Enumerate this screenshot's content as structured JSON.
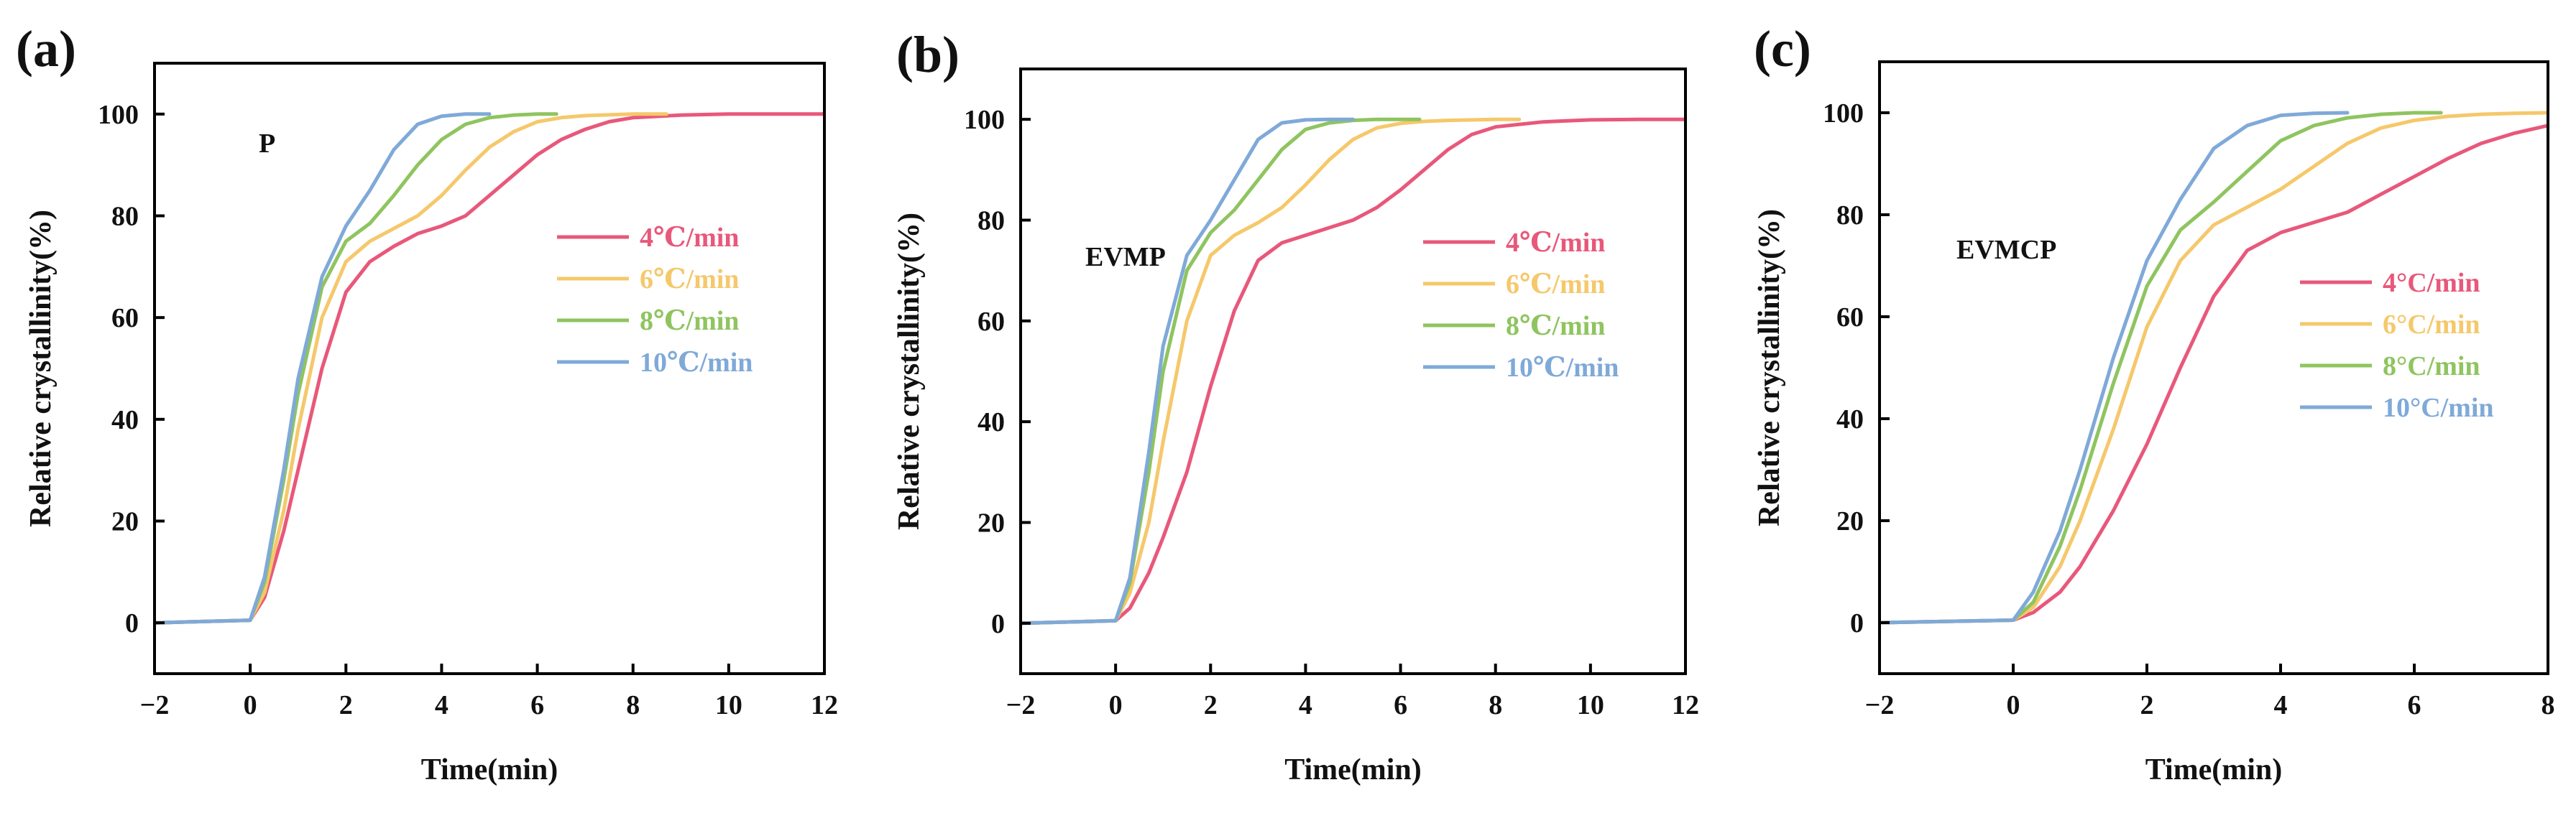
{
  "chart_data": [
    {
      "panel_label": "(a)",
      "type": "line",
      "title": "",
      "sample_label": "P",
      "xlabel": "Time(min)",
      "ylabel": "Relative crystallinity(%)",
      "xlim": [
        -2,
        12
      ],
      "ylim": [
        -10,
        110
      ],
      "xticks": [
        -2,
        0,
        2,
        4,
        6,
        8,
        10,
        12
      ],
      "xtick_labels": [
        "−2",
        "0",
        "2",
        "4",
        "6",
        "8",
        "10",
        "12"
      ],
      "yticks": [
        0,
        20,
        40,
        60,
        80,
        100
      ],
      "ytick_labels": [
        "0",
        "20",
        "40",
        "60",
        "80",
        "100"
      ],
      "legend_position": "center-right",
      "series": [
        {
          "name": "4℃/min",
          "color": "#e8587a",
          "x": [
            -2,
            0,
            0.3,
            0.7,
            1,
            1.5,
            2,
            2.5,
            3,
            3.5,
            4,
            4.5,
            5,
            5.5,
            6,
            6.5,
            7,
            7.5,
            8,
            9,
            10,
            11,
            12
          ],
          "y": [
            0,
            0.5,
            5,
            18,
            30,
            50,
            65,
            71,
            74,
            76.5,
            78,
            80,
            84,
            88,
            92,
            95,
            97,
            98.5,
            99.3,
            99.8,
            100,
            100,
            100
          ]
        },
        {
          "name": "6℃/min",
          "color": "#f5c86b",
          "x": [
            -2,
            0,
            0.3,
            0.7,
            1,
            1.5,
            2,
            2.5,
            3,
            3.5,
            4,
            4.5,
            5,
            5.5,
            6,
            6.5,
            7,
            8,
            8.7
          ],
          "y": [
            0,
            0.5,
            6,
            22,
            38,
            60,
            71,
            75,
            77.5,
            80,
            84,
            89,
            93.5,
            96.5,
            98.5,
            99.3,
            99.7,
            100,
            100
          ]
        },
        {
          "name": "8℃/min",
          "color": "#8fc45f",
          "x": [
            -2,
            0,
            0.3,
            0.7,
            1,
            1.5,
            2,
            2.5,
            3,
            3.5,
            4,
            4.5,
            5,
            5.5,
            6,
            6.4
          ],
          "y": [
            0,
            0.5,
            8,
            28,
            45,
            66,
            75,
            78.5,
            84,
            90,
            95,
            98,
            99.3,
            99.8,
            100,
            100
          ]
        },
        {
          "name": "10℃/min",
          "color": "#7fa9d8",
          "x": [
            -2,
            0,
            0.3,
            0.7,
            1,
            1.5,
            2,
            2.5,
            3,
            3.5,
            4,
            4.5,
            5
          ],
          "y": [
            0,
            0.5,
            9,
            30,
            48,
            68,
            78,
            85,
            93,
            98,
            99.6,
            100,
            100
          ]
        }
      ]
    },
    {
      "panel_label": "(b)",
      "type": "line",
      "title": "",
      "sample_label": "EVMP",
      "xlabel": "Time(min)",
      "ylabel": "Relative crystallinity(%)",
      "xlim": [
        -2,
        12
      ],
      "ylim": [
        -10,
        110
      ],
      "xticks": [
        -2,
        0,
        2,
        4,
        6,
        8,
        10,
        12
      ],
      "xtick_labels": [
        "−2",
        "0",
        "2",
        "4",
        "6",
        "8",
        "10",
        "12"
      ],
      "yticks": [
        0,
        20,
        40,
        60,
        80,
        100
      ],
      "ytick_labels": [
        "0",
        "20",
        "40",
        "60",
        "80",
        "100"
      ],
      "legend_position": "center-right",
      "series": [
        {
          "name": "4℃/min",
          "color": "#e8587a",
          "x": [
            -2,
            0,
            0.3,
            0.7,
            1,
            1.5,
            2,
            2.5,
            3,
            3.5,
            4,
            4.5,
            5,
            5.5,
            6,
            6.5,
            7,
            7.5,
            8,
            9,
            10,
            11,
            12
          ],
          "y": [
            0,
            0.5,
            3,
            10,
            17,
            30,
            47,
            62,
            72,
            75.5,
            77,
            78.5,
            80,
            82.5,
            86,
            90,
            94,
            97,
            98.5,
            99.5,
            99.9,
            100,
            100
          ]
        },
        {
          "name": "6℃/min",
          "color": "#f5c86b",
          "x": [
            -2,
            0,
            0.3,
            0.7,
            1,
            1.5,
            2,
            2.5,
            3,
            3.5,
            4,
            4.5,
            5,
            5.5,
            6,
            6.5,
            7,
            8,
            8.5
          ],
          "y": [
            0,
            0.5,
            6,
            20,
            36,
            60,
            73,
            77,
            79.5,
            82.5,
            87,
            92,
            96,
            98.3,
            99.2,
            99.6,
            99.8,
            100,
            100
          ]
        },
        {
          "name": "8℃/min",
          "color": "#8fc45f",
          "x": [
            -2,
            0,
            0.3,
            0.7,
            1,
            1.5,
            2,
            2.5,
            3,
            3.5,
            4,
            4.5,
            5,
            5.5,
            6,
            6.4
          ],
          "y": [
            0,
            0.5,
            8,
            30,
            50,
            70,
            77.5,
            82,
            88,
            94,
            98,
            99.3,
            99.8,
            100,
            100,
            100
          ]
        },
        {
          "name": "10℃/min",
          "color": "#7fa9d8",
          "x": [
            -2,
            0,
            0.3,
            0.7,
            1,
            1.5,
            2,
            2.5,
            3,
            3.5,
            4,
            4.5,
            5
          ],
          "y": [
            0,
            0.5,
            9,
            34,
            55,
            73,
            80,
            88,
            96,
            99.3,
            99.9,
            100,
            100
          ]
        }
      ]
    },
    {
      "panel_label": "(c)",
      "type": "line",
      "title": "",
      "sample_label": "EVMCP",
      "xlabel": "Time(min)",
      "ylabel": "Relative crystallinity(%)",
      "xlim": [
        -2,
        8
      ],
      "ylim": [
        -10,
        110
      ],
      "xticks": [
        -2,
        0,
        2,
        4,
        6,
        8
      ],
      "xtick_labels": [
        "−2",
        "0",
        "2",
        "4",
        "6",
        "8"
      ],
      "yticks": [
        0,
        20,
        40,
        60,
        80,
        100
      ],
      "ytick_labels": [
        "0",
        "20",
        "40",
        "60",
        "80",
        "100"
      ],
      "legend_position": "center-right",
      "series": [
        {
          "name": "4°C/min",
          "color": "#e8587a",
          "x": [
            -2,
            0,
            0.3,
            0.7,
            1,
            1.5,
            2,
            2.5,
            3,
            3.5,
            4,
            4.5,
            5,
            5.5,
            6,
            6.5,
            7,
            7.5,
            8
          ],
          "y": [
            0,
            0.5,
            2,
            6,
            11,
            22,
            35,
            50,
            64,
            73,
            76.5,
            78.5,
            80.5,
            84,
            87.5,
            91,
            94,
            96,
            97.5
          ]
        },
        {
          "name": "6°C/min",
          "color": "#f5c86b",
          "x": [
            -2,
            0,
            0.3,
            0.7,
            1,
            1.5,
            2,
            2.5,
            3,
            3.5,
            4,
            4.5,
            5,
            5.5,
            6,
            6.5,
            7,
            7.5,
            8
          ],
          "y": [
            0,
            0.5,
            3,
            11,
            20,
            38,
            58,
            71,
            78,
            81.5,
            85,
            89.5,
            94,
            97,
            98.5,
            99.3,
            99.7,
            99.9,
            100
          ]
        },
        {
          "name": "8°C/min",
          "color": "#8fc45f",
          "x": [
            -2,
            0,
            0.3,
            0.7,
            1,
            1.5,
            2,
            2.5,
            3,
            3.5,
            4,
            4.5,
            5,
            5.5,
            6,
            6.4
          ],
          "y": [
            0,
            0.5,
            4,
            15,
            26,
            47,
            66,
            77,
            82.5,
            88.5,
            94.5,
            97.5,
            99,
            99.7,
            100,
            100
          ]
        },
        {
          "name": "10°C/min",
          "color": "#7fa9d8",
          "x": [
            -2,
            0,
            0.3,
            0.7,
            1,
            1.5,
            2,
            2.5,
            3,
            3.5,
            4,
            4.5,
            5
          ],
          "y": [
            0,
            0.5,
            6,
            18,
            30,
            52,
            71,
            83,
            93,
            97.5,
            99.5,
            99.9,
            100
          ]
        }
      ]
    }
  ]
}
